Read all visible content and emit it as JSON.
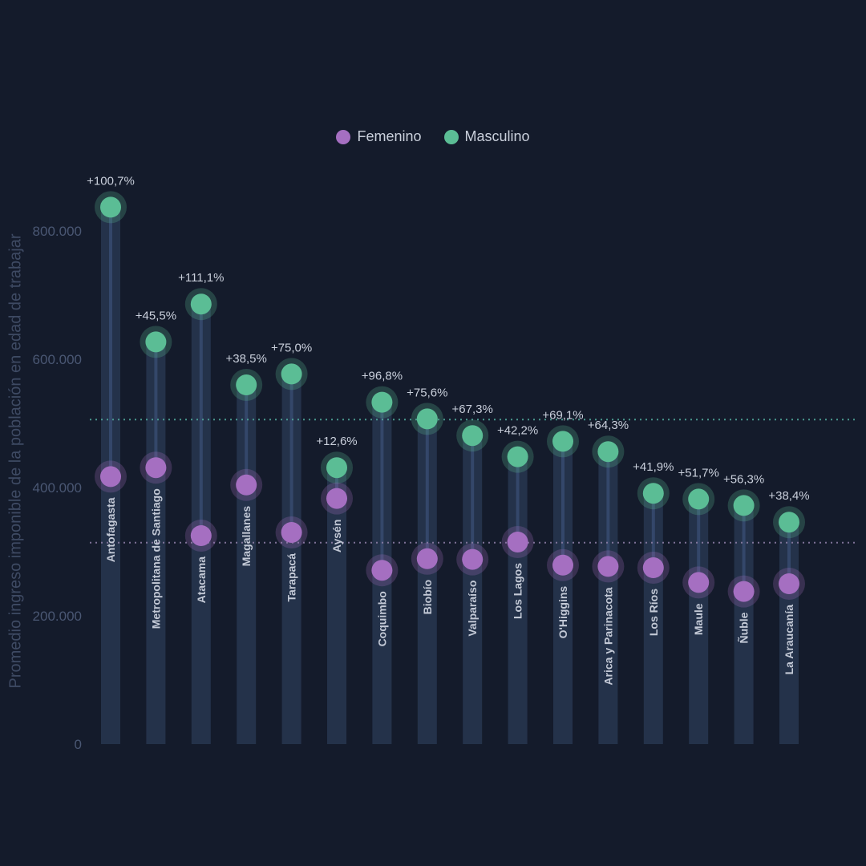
{
  "legend": {
    "female_label": "Femenino",
    "male_label": "Masculino"
  },
  "colors": {
    "background": "#141b2b",
    "female": "#a56fc1",
    "male": "#5bbd95",
    "column": "#24324a",
    "female_avg_line": "#8a7ca3",
    "male_avg_line": "#4fa79a"
  },
  "chart_data": {
    "type": "dot-plot",
    "ylabel": "Promedio ingreso imponible de la población en edad de trabajar",
    "ylim": [
      0,
      850000
    ],
    "yticks": [
      0,
      200000,
      400000,
      600000,
      800000
    ],
    "ytick_labels": [
      "0",
      "200.000",
      "400.000",
      "600.000",
      "800.000"
    ],
    "grid": false,
    "legend_position": "top-center",
    "categories": [
      "Antofagasta",
      "Metropolitana de Santiago",
      "Atacama",
      "Magallanes",
      "Tarapacá",
      "Aysén",
      "Coquimbo",
      "Biobío",
      "Valparaíso",
      "Los Lagos",
      "O'Higgins",
      "Arica y Parinacota",
      "Los Ríos",
      "Maule",
      "Ñuble",
      "La Araucanía"
    ],
    "series": [
      {
        "name": "Femenino",
        "values": [
          417000,
          431000,
          325000,
          404000,
          330000,
          383000,
          271000,
          289000,
          288000,
          315000,
          279000,
          277000,
          275000,
          252000,
          238000,
          250000
        ]
      },
      {
        "name": "Masculino",
        "values": [
          837000,
          627000,
          686000,
          560000,
          577000,
          431000,
          533000,
          507000,
          481000,
          448000,
          472000,
          456000,
          391000,
          382000,
          372000,
          346000
        ]
      }
    ],
    "gap_labels": [
      "+100,7%",
      "+45,5%",
      "+111,1%",
      "+38,5%",
      "+75,0%",
      "+12,6%",
      "+96,8%",
      "+75,6%",
      "+67,3%",
      "+42,2%",
      "+69,1%",
      "+64,3%",
      "+41,9%",
      "+51,7%",
      "+56,3%",
      "+38,4%"
    ],
    "reference_lines": [
      {
        "series": "Masculino",
        "value": 506000
      },
      {
        "series": "Femenino",
        "value": 314000
      }
    ]
  }
}
